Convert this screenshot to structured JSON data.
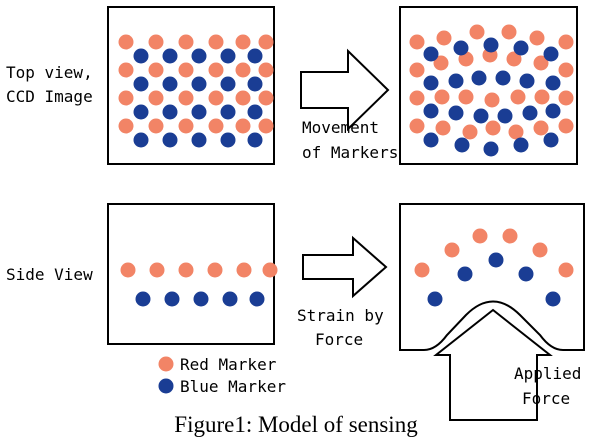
{
  "labels": {
    "top_view_line1": "Top view,",
    "top_view_line2": "CCD Image",
    "movement_line1": "Movement",
    "movement_line2": "of Markers",
    "side_view": "Side View",
    "strain_line1": "Strain by",
    "strain_line2": "Force",
    "applied_line1": "Applied",
    "applied_line2": "Force",
    "caption": "Figure1: Model of sensing"
  },
  "legend": [
    {
      "label": "Red Marker",
      "color_key": "red"
    },
    {
      "label": "Blue Marker",
      "color_key": "blue"
    }
  ],
  "colors": {
    "red": "#F28466",
    "blue": "#1A3D94",
    "outline": "#000000",
    "background": "#FFFFFF"
  }
}
